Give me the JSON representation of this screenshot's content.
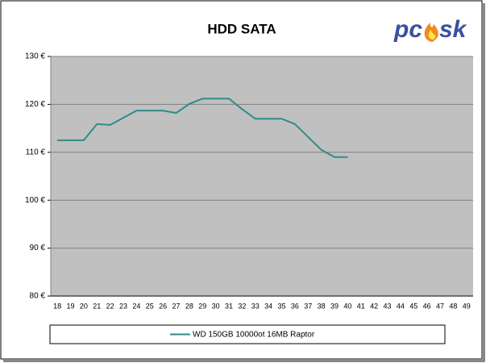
{
  "chart_data": {
    "type": "line",
    "title": "HDD SATA",
    "logo": {
      "left": "pc",
      "right": "sk"
    },
    "categories": [
      "18",
      "19",
      "20",
      "21",
      "22",
      "23",
      "24",
      "25",
      "26",
      "27",
      "28",
      "29",
      "30",
      "31",
      "32",
      "33",
      "34",
      "35",
      "36",
      "37",
      "38",
      "39",
      "40",
      "41",
      "42",
      "43",
      "44",
      "45",
      "46",
      "47",
      "48",
      "49"
    ],
    "series": [
      {
        "name": "WD 150GB 10000ot 16MB Raptor",
        "color": "#2e8b8b",
        "values": [
          112.5,
          112.5,
          112.5,
          115.9,
          115.7,
          117.2,
          118.7,
          118.7,
          118.7,
          118.2,
          120.1,
          121.2,
          121.2,
          121.2,
          119.0,
          117.0,
          117.0,
          117.0,
          115.9,
          113.2,
          110.5,
          109.0,
          109.0,
          null,
          null,
          null,
          null,
          null,
          null,
          null,
          null,
          null
        ]
      }
    ],
    "ylim": [
      80,
      130
    ],
    "yticks": [
      {
        "value": 80,
        "label": "80 €"
      },
      {
        "value": 90,
        "label": "90 €"
      },
      {
        "value": 100,
        "label": "100 €"
      },
      {
        "value": 110,
        "label": "110 €"
      },
      {
        "value": 120,
        "label": "120 €"
      },
      {
        "value": 130,
        "label": "130 €"
      }
    ],
    "grid": true
  }
}
